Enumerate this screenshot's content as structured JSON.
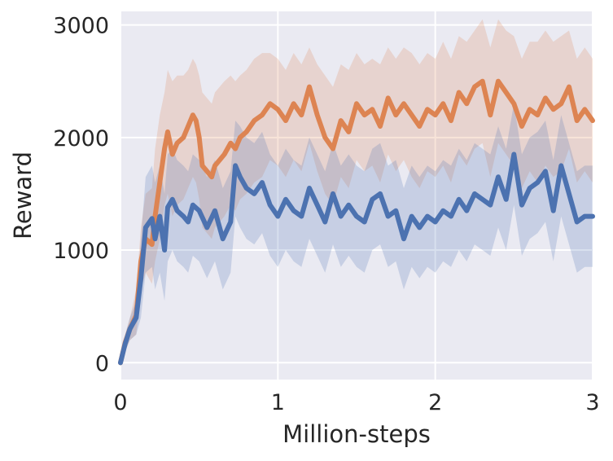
{
  "chart_data": {
    "type": "line",
    "title": "",
    "xlabel": "Million-steps",
    "ylabel": "Reward",
    "xlim": [
      0,
      3
    ],
    "ylim": [
      -150,
      3120
    ],
    "xticks": [
      0,
      1,
      2,
      3
    ],
    "xtick_labels": [
      "0",
      "1",
      "2",
      "3"
    ],
    "yticks": [
      0,
      1000,
      2000,
      3000
    ],
    "ytick_labels": [
      "0",
      "1000",
      "2000",
      "3000"
    ],
    "grid": true,
    "legend": "none",
    "background_color": "#eaeaf2",
    "series": [
      {
        "color": "#dd8452",
        "x": [
          0,
          0.03,
          0.06,
          0.1,
          0.13,
          0.16,
          0.2,
          0.22,
          0.25,
          0.28,
          0.3,
          0.33,
          0.36,
          0.4,
          0.43,
          0.46,
          0.48,
          0.5,
          0.52,
          0.55,
          0.58,
          0.6,
          0.63,
          0.66,
          0.7,
          0.73,
          0.76,
          0.8,
          0.85,
          0.9,
          0.95,
          1.0,
          1.05,
          1.1,
          1.15,
          1.2,
          1.25,
          1.3,
          1.35,
          1.4,
          1.45,
          1.5,
          1.55,
          1.6,
          1.65,
          1.7,
          1.75,
          1.8,
          1.85,
          1.9,
          1.95,
          2.0,
          2.05,
          2.1,
          2.15,
          2.2,
          2.25,
          2.3,
          2.35,
          2.4,
          2.45,
          2.5,
          2.55,
          2.6,
          2.65,
          2.7,
          2.75,
          2.8,
          2.85,
          2.9,
          2.95,
          3.0
        ],
        "y": [
          0,
          180,
          300,
          420,
          900,
          1100,
          1050,
          1300,
          1600,
          1900,
          2050,
          1850,
          1950,
          2000,
          2100,
          2200,
          2150,
          2000,
          1750,
          1700,
          1650,
          1750,
          1800,
          1850,
          1950,
          1900,
          2000,
          2050,
          2150,
          2200,
          2300,
          2250,
          2150,
          2300,
          2200,
          2450,
          2200,
          2000,
          1900,
          2150,
          2050,
          2300,
          2200,
          2250,
          2100,
          2350,
          2200,
          2300,
          2200,
          2100,
          2250,
          2200,
          2300,
          2150,
          2400,
          2300,
          2450,
          2500,
          2200,
          2500,
          2400,
          2300,
          2100,
          2250,
          2200,
          2350,
          2250,
          2300,
          2450,
          2150,
          2250,
          2150
        ],
        "upper": [
          0,
          250,
          400,
          650,
          1200,
          1500,
          1550,
          1900,
          2200,
          2400,
          2600,
          2500,
          2550,
          2550,
          2600,
          2700,
          2650,
          2550,
          2400,
          2350,
          2300,
          2400,
          2450,
          2500,
          2550,
          2500,
          2550,
          2600,
          2700,
          2750,
          2750,
          2700,
          2600,
          2750,
          2650,
          2800,
          2650,
          2550,
          2450,
          2650,
          2600,
          2750,
          2650,
          2700,
          2650,
          2800,
          2700,
          2800,
          2750,
          2650,
          2750,
          2700,
          2850,
          2700,
          2900,
          2850,
          2950,
          3050,
          2800,
          3050,
          2950,
          2900,
          2700,
          2850,
          2850,
          2950,
          2850,
          2900,
          2950,
          2700,
          2800,
          2700
        ],
        "lower": [
          0,
          100,
          200,
          250,
          650,
          800,
          700,
          900,
          1100,
          1400,
          1500,
          1300,
          1400,
          1450,
          1550,
          1650,
          1600,
          1450,
          1200,
          1150,
          1100,
          1200,
          1250,
          1300,
          1400,
          1350,
          1450,
          1500,
          1600,
          1650,
          1800,
          1750,
          1650,
          1800,
          1700,
          1950,
          1700,
          1500,
          1400,
          1650,
          1550,
          1800,
          1700,
          1750,
          1600,
          1850,
          1700,
          1800,
          1650,
          1550,
          1700,
          1650,
          1750,
          1600,
          1850,
          1750,
          1900,
          1950,
          1650,
          1950,
          1850,
          1750,
          1550,
          1700,
          1600,
          1750,
          1650,
          1700,
          1900,
          1600,
          1700,
          1600
        ]
      },
      {
        "color": "#4c72b0",
        "x": [
          0,
          0.03,
          0.06,
          0.1,
          0.13,
          0.16,
          0.2,
          0.22,
          0.25,
          0.28,
          0.3,
          0.33,
          0.36,
          0.4,
          0.43,
          0.46,
          0.5,
          0.55,
          0.6,
          0.65,
          0.7,
          0.73,
          0.76,
          0.8,
          0.85,
          0.9,
          0.95,
          1.0,
          1.05,
          1.1,
          1.15,
          1.2,
          1.25,
          1.3,
          1.35,
          1.4,
          1.45,
          1.5,
          1.55,
          1.6,
          1.65,
          1.7,
          1.75,
          1.8,
          1.85,
          1.9,
          1.95,
          2.0,
          2.05,
          2.1,
          2.15,
          2.2,
          2.25,
          2.3,
          2.35,
          2.4,
          2.45,
          2.5,
          2.55,
          2.6,
          2.65,
          2.7,
          2.75,
          2.8,
          2.85,
          2.9,
          2.95,
          3.0
        ],
        "y": [
          0,
          170,
          300,
          400,
          750,
          1200,
          1280,
          1100,
          1300,
          1000,
          1380,
          1450,
          1350,
          1300,
          1250,
          1400,
          1350,
          1200,
          1350,
          1100,
          1250,
          1750,
          1650,
          1550,
          1500,
          1600,
          1400,
          1300,
          1450,
          1350,
          1300,
          1550,
          1400,
          1250,
          1500,
          1300,
          1400,
          1300,
          1250,
          1450,
          1500,
          1300,
          1350,
          1100,
          1300,
          1200,
          1300,
          1250,
          1350,
          1300,
          1450,
          1350,
          1500,
          1450,
          1400,
          1650,
          1450,
          1850,
          1400,
          1550,
          1600,
          1700,
          1350,
          1750,
          1500,
          1250,
          1300,
          1300
        ],
        "upper": [
          0,
          250,
          400,
          550,
          1100,
          1650,
          1750,
          1600,
          1750,
          1500,
          1850,
          1900,
          1800,
          1750,
          1700,
          1850,
          1800,
          1650,
          1800,
          1550,
          1700,
          2150,
          2100,
          2000,
          1950,
          2050,
          1850,
          1750,
          1900,
          1800,
          1750,
          2000,
          1850,
          1700,
          1950,
          1750,
          1850,
          1750,
          1700,
          1900,
          1950,
          1750,
          1800,
          1550,
          1750,
          1650,
          1750,
          1700,
          1800,
          1750,
          1900,
          1800,
          1950,
          1900,
          1850,
          2100,
          1900,
          2300,
          1850,
          2000,
          2050,
          2150,
          1800,
          2200,
          1950,
          1700,
          1750,
          1750
        ],
        "lower": [
          0,
          100,
          200,
          250,
          400,
          800,
          850,
          650,
          800,
          550,
          900,
          1000,
          900,
          850,
          800,
          950,
          900,
          750,
          900,
          650,
          800,
          1300,
          1200,
          1100,
          1050,
          1150,
          950,
          850,
          1000,
          900,
          850,
          1100,
          950,
          800,
          1050,
          850,
          950,
          850,
          800,
          1000,
          1050,
          850,
          900,
          650,
          850,
          750,
          850,
          800,
          900,
          850,
          1000,
          900,
          1050,
          1000,
          950,
          1200,
          1000,
          1400,
          950,
          1100,
          1150,
          1250,
          900,
          1300,
          1050,
          800,
          850,
          850
        ]
      }
    ]
  }
}
